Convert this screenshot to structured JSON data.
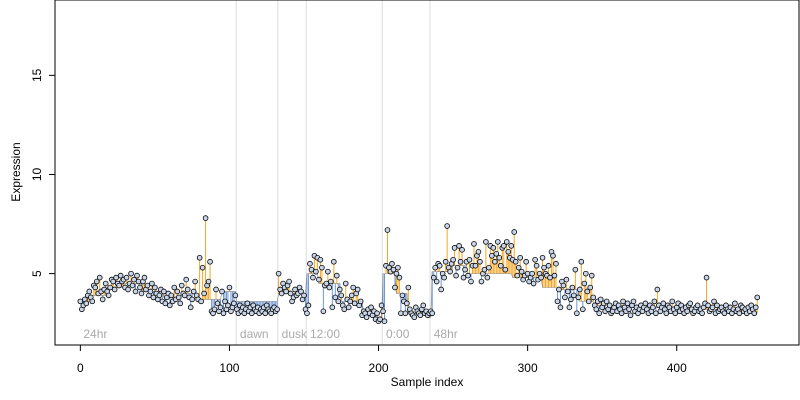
{
  "chart_data": {
    "type": "scatter",
    "title": "",
    "xlabel": "Sample index",
    "ylabel": "Expression",
    "xlim": [
      -17,
      482
    ],
    "ylim": [
      1.4,
      18.8
    ],
    "xticks": [
      0,
      100,
      200,
      300,
      400
    ],
    "yticks": [
      5,
      10,
      15
    ],
    "grid": false,
    "colors": {
      "above_fit": "#f5a623",
      "below_fit": "#6f97d8",
      "separator": "#dddddd",
      "point_fill": "#c9d6ea",
      "point_stroke": "#000000",
      "segment_label": "#aaaaaa"
    },
    "segments": [
      {
        "label": "24hr",
        "start": 0,
        "end": 104,
        "fit": 4.0
      },
      {
        "label": "dawn",
        "start": 105,
        "end": 132,
        "fit": 3.6
      },
      {
        "label": "dusk",
        "start": 133,
        "end": 151,
        "fit": 4.0
      },
      {
        "label": "12:00",
        "start": 152,
        "end": 202,
        "fit": 3.3
      },
      {
        "label": "0:00",
        "start": 203,
        "end": 234,
        "fit": 3.0
      },
      {
        "label": "48hr",
        "start": 235,
        "end": 462,
        "fit": 3.4
      }
    ],
    "fit_steps": [
      [
        0,
        3.6
      ],
      [
        8,
        3.9
      ],
      [
        18,
        4.3
      ],
      [
        30,
        4.5
      ],
      [
        42,
        4.1
      ],
      [
        56,
        3.8
      ],
      [
        68,
        4.0
      ],
      [
        80,
        3.7
      ],
      [
        95,
        4.1
      ],
      [
        105,
        3.6
      ],
      [
        133,
        4.0
      ],
      [
        152,
        5.0
      ],
      [
        160,
        4.5
      ],
      [
        175,
        3.6
      ],
      [
        190,
        3.0
      ],
      [
        200,
        2.6
      ],
      [
        203,
        5.0
      ],
      [
        212,
        4.0
      ],
      [
        220,
        3.0
      ],
      [
        234,
        2.8
      ],
      [
        236,
        5.1
      ],
      [
        250,
        5.4
      ],
      [
        260,
        5.0
      ],
      [
        275,
        5.0
      ],
      [
        290,
        4.8
      ],
      [
        300,
        4.8
      ],
      [
        310,
        4.3
      ],
      [
        320,
        4.2
      ],
      [
        335,
        3.6
      ],
      [
        345,
        3.4
      ],
      [
        370,
        3.3
      ],
      [
        400,
        3.2
      ],
      [
        430,
        3.0
      ],
      [
        462,
        2.8
      ]
    ],
    "points": [
      3.6,
      3.2,
      3.4,
      3.7,
      3.5,
      3.9,
      4.1,
      3.8,
      3.6,
      4.4,
      4.3,
      4.6,
      4.0,
      4.8,
      4.1,
      3.7,
      4.2,
      4.5,
      4.1,
      3.9,
      4.3,
      4.7,
      4.6,
      4.2,
      4.8,
      4.5,
      4.4,
      4.9,
      4.6,
      4.7,
      4.3,
      4.8,
      4.2,
      4.5,
      5.0,
      4.4,
      4.7,
      4.1,
      4.9,
      4.6,
      4.3,
      4.0,
      4.6,
      4.8,
      4.2,
      4.4,
      3.9,
      4.1,
      4.5,
      3.8,
      4.3,
      4.0,
      3.7,
      3.9,
      4.2,
      3.6,
      4.1,
      3.5,
      3.8,
      4.0,
      3.4,
      3.9,
      3.6,
      4.3,
      3.7,
      4.1,
      3.8,
      3.5,
      4.4,
      4.0,
      3.9,
      4.7,
      4.2,
      3.8,
      3.3,
      3.7,
      4.1,
      4.6,
      3.9,
      3.7,
      5.8,
      3.6,
      5.3,
      4.0,
      7.8,
      4.4,
      4.6,
      5.6,
      3.1,
      3.0,
      3.2,
      4.2,
      3.5,
      3.1,
      3.3,
      4.1,
      3.0,
      3.6,
      3.2,
      3.4,
      4.3,
      3.1,
      3.3,
      3.5,
      3.9,
      3.2,
      3.0,
      3.4,
      3.1,
      3.3,
      3.0,
      3.2,
      3.5,
      3.1,
      3.3,
      3.0,
      3.4,
      3.2,
      3.1,
      3.3,
      3.0,
      3.2,
      3.1,
      3.3,
      3.0,
      3.4,
      3.2,
      3.1,
      3.0,
      3.2,
      3.3,
      3.1,
      3.2,
      5.0,
      4.2,
      4.0,
      4.5,
      4.3,
      4.1,
      4.4,
      4.6,
      4.0,
      3.6,
      3.8,
      4.2,
      3.9,
      4.0,
      4.3,
      4.1,
      3.7,
      3.9,
      3.2,
      3.0,
      3.4,
      5.5,
      5.2,
      4.8,
      5.9,
      5.1,
      5.8,
      4.7,
      5.7,
      5.3,
      3.1,
      4.4,
      4.5,
      5.1,
      4.3,
      4.6,
      3.3,
      5.6,
      3.8,
      4.9,
      3.6,
      4.2,
      3.9,
      3.4,
      3.2,
      4.5,
      3.7,
      3.3,
      3.6,
      3.9,
      4.3,
      3.5,
      4.0,
      4.2,
      3.4,
      3.6,
      2.9,
      3.1,
      3.0,
      2.8,
      3.2,
      3.0,
      3.3,
      2.9,
      3.1,
      2.7,
      3.0,
      2.6,
      2.7,
      3.4,
      3.1,
      2.6,
      5.4,
      7.2,
      5.3,
      5.1,
      5.5,
      5.2,
      4.3,
      5.0,
      5.3,
      4.8,
      3.0,
      3.9,
      3.6,
      3.0,
      3.5,
      4.3,
      3.2,
      3.0,
      2.9,
      2.8,
      3.3,
      3.1,
      3.0,
      2.9,
      3.2,
      3.4,
      3.0,
      3.1,
      2.9,
      3.0,
      3.1,
      3.0,
      4.8,
      5.3,
      4.6,
      5.5,
      5.4,
      4.2,
      5.0,
      4.8,
      5.6,
      7.4,
      5.3,
      5.1,
      5.5,
      5.7,
      6.3,
      4.9,
      5.3,
      6.4,
      5.6,
      6.2,
      4.8,
      5.2,
      5.6,
      4.9,
      5.7,
      4.6,
      5.4,
      6.5,
      5.4,
      5.9,
      6.1,
      5.6,
      4.6,
      5.0,
      5.2,
      6.6,
      4.8,
      5.3,
      6.4,
      5.9,
      6.3,
      5.6,
      6.0,
      6.6,
      5.8,
      5.4,
      6.3,
      6.4,
      5.2,
      6.6,
      6.1,
      5.8,
      6.4,
      5.7,
      7.1,
      5.6,
      4.9,
      5.3,
      5.8,
      5.1,
      4.7,
      4.9,
      5.6,
      5.0,
      4.6,
      4.8,
      5.0,
      4.5,
      5.7,
      5.4,
      4.7,
      5.0,
      4.8,
      5.8,
      5.3,
      5.0,
      4.9,
      5.4,
      4.8,
      6.1,
      5.9,
      4.9,
      5.5,
      3.6,
      4.2,
      3.3,
      4.6,
      4.4,
      3.8,
      4.7,
      4.1,
      3.3,
      3.7,
      4.3,
      3.9,
      5.2,
      3.0,
      3.8,
      4.2,
      5.6,
      3.2,
      4.5,
      5.0,
      4.1,
      3.6,
      4.3,
      4.9,
      3.8,
      3.4,
      3.2,
      3.6,
      3.0,
      3.7,
      3.3,
      3.5,
      3.1,
      3.6,
      3.2,
      3.4,
      3.0,
      3.1,
      3.3,
      3.5,
      3.1,
      3.4,
      3.2,
      3.0,
      3.6,
      3.3,
      3.1,
      3.5,
      3.2,
      2.9,
      3.4,
      3.6,
      3.1,
      3.3,
      3.0,
      3.2,
      3.4,
      3.1,
      3.3,
      3.5,
      3.2,
      3.0,
      3.4,
      3.1,
      3.3,
      3.6,
      3.0,
      4.2,
      3.4,
      3.1,
      3.3,
      3.5,
      3.2,
      3.0,
      3.4,
      3.3,
      3.1,
      3.6,
      3.2,
      3.0,
      3.3,
      3.5,
      3.1,
      3.4,
      3.2,
      3.0,
      3.3,
      3.1,
      3.4,
      3.5,
      3.2,
      3.0,
      3.1,
      3.3,
      3.4,
      3.1,
      3.2,
      3.0,
      3.3,
      3.5,
      4.8,
      3.4,
      3.1,
      3.2,
      3.3,
      3.6,
      3.0,
      3.4,
      3.1,
      3.2,
      3.3,
      3.1,
      3.0,
      3.4,
      3.2,
      3.1,
      3.3,
      3.0,
      3.2,
      3.5,
      3.1,
      3.2,
      3.0,
      3.4,
      3.3,
      3.1,
      3.2,
      3.0,
      3.3,
      3.1,
      3.4,
      3.2,
      3.0,
      3.3,
      3.8
    ]
  }
}
